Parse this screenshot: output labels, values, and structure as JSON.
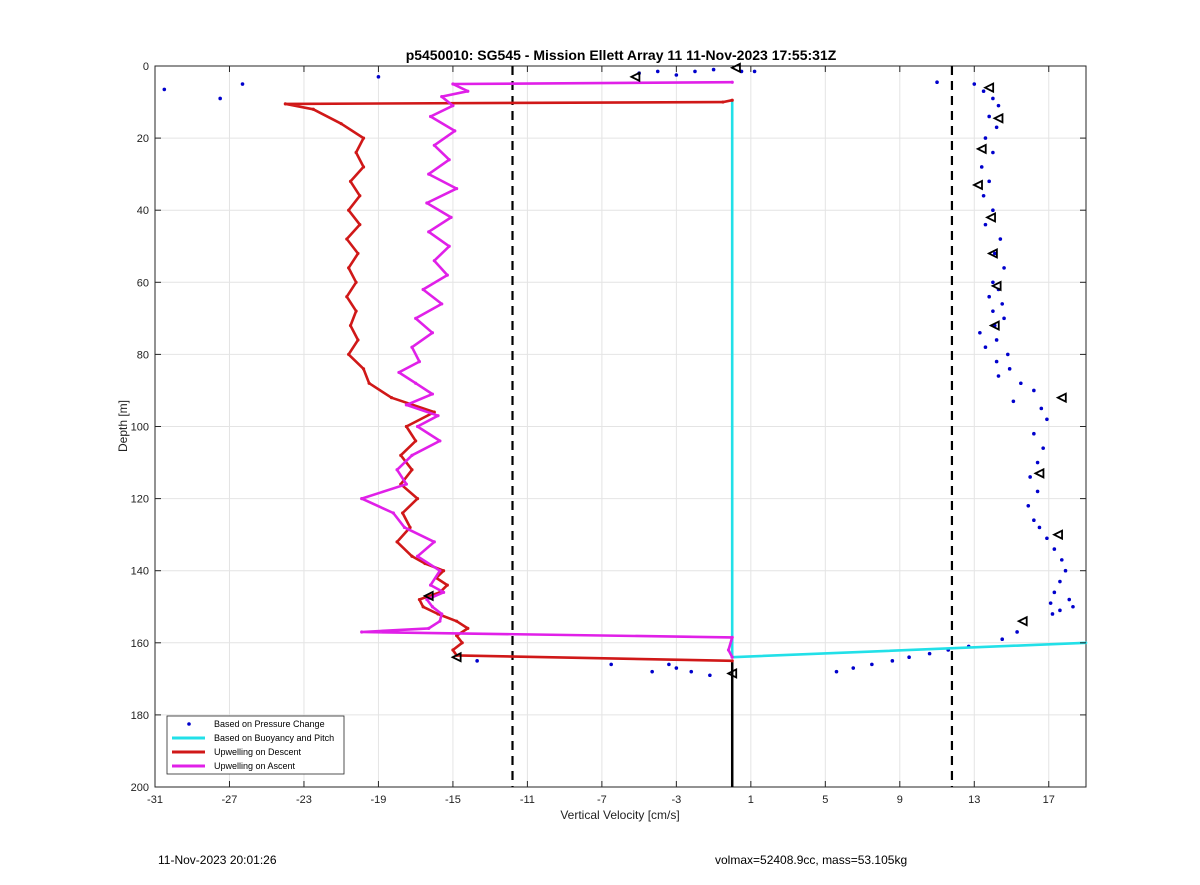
{
  "chart_data": {
    "type": "line",
    "title": "p5450010: SG545 - Mission Ellett Array 11 11-Nov-2023 17:55:31Z",
    "xlabel": "Vertical Velocity [cm/s]",
    "ylabel": "Depth [m]",
    "xlim": [
      -31,
      19
    ],
    "ylim": [
      0,
      200
    ],
    "y_reversed": true,
    "xticks": [
      -31,
      -27,
      -23,
      -19,
      -15,
      -11,
      -7,
      -3,
      1,
      5,
      9,
      13,
      17
    ],
    "yticks": [
      0,
      20,
      40,
      60,
      80,
      100,
      120,
      140,
      160,
      180,
      200
    ],
    "grid": true,
    "legend_position": "bottom-left",
    "vertical_reference_lines": [
      -11.8,
      11.8,
      0
    ],
    "series": [
      {
        "name": "Based on Pressure Change",
        "style": "dots",
        "color": "#0000cc",
        "x": [
          -30.5,
          -27.5,
          -26.3,
          -19,
          -5,
          -4,
          -3,
          -2,
          -1,
          0.5,
          1.2,
          11,
          13,
          13.5,
          14,
          14.3,
          13.8,
          14.2,
          13.6,
          14,
          13.4,
          13.8,
          13.5,
          14,
          13.6,
          14.4,
          14.1,
          14.6,
          14,
          14.3,
          13.8,
          14.5,
          14,
          14.6,
          14.1,
          13.3,
          14.2,
          13.6,
          14.8,
          14.2,
          14.9,
          14.3,
          15.5,
          16.2,
          15.1,
          16.6,
          16.9,
          16.2,
          16.7,
          16.4,
          16,
          16.4,
          15.9,
          16.2,
          16.5,
          16.9,
          17.3,
          17.7,
          17.9,
          17.6,
          17.3,
          17.1,
          17.6,
          18.1,
          18.3,
          17.2,
          15.3,
          14.5,
          12.7,
          11.6,
          10.6,
          9.5,
          8.6,
          7.5,
          6.5,
          5.6,
          -1.2,
          -2.2,
          -3,
          -3.4,
          -4.3,
          -6.5,
          -13.7
        ],
        "y": [
          6.5,
          9,
          5,
          3,
          2,
          1.5,
          2.5,
          1.5,
          1,
          1.5,
          1.5,
          4.5,
          5,
          7,
          9,
          11,
          14,
          17,
          20,
          24,
          28,
          32,
          36,
          40,
          44,
          48,
          52,
          56,
          60,
          62,
          64,
          66,
          68,
          70,
          72,
          74,
          76,
          78,
          80,
          82,
          84,
          86,
          88,
          90,
          93,
          95,
          98,
          102,
          106,
          110,
          114,
          118,
          122,
          126,
          128,
          131,
          134,
          137,
          140,
          143,
          146,
          149,
          151,
          148,
          150,
          152,
          157,
          159,
          161,
          162,
          163,
          164,
          165,
          166,
          167,
          168,
          169,
          168,
          167,
          166,
          168,
          166,
          165
        ]
      },
      {
        "name": "Based on Buoyancy and Pitch",
        "style": "line",
        "color": "#22e0e8",
        "x": [
          0,
          0,
          0,
          0,
          19
        ],
        "y": [
          9.5,
          100,
          159,
          164,
          160
        ]
      },
      {
        "name": "Upwelling on Descent",
        "style": "line-markers",
        "color": "#d01818",
        "x": [
          0,
          -0.5,
          -24,
          -22.5,
          -21,
          -19.8,
          -20.2,
          -19.8,
          -20.5,
          -20,
          -20.6,
          -20,
          -20.7,
          -20.1,
          -20.6,
          -20.2,
          -20.7,
          -20.2,
          -20.5,
          -20.1,
          -20.6,
          -19.8,
          -19.5,
          -18.3,
          -16,
          -17.5,
          -17,
          -17.8,
          -17.2,
          -17.8,
          -16.9,
          -17.7,
          -17.3,
          -18,
          -17.2,
          -16.5,
          -15.5,
          -15.9,
          -15.3,
          -15.7,
          -16.8,
          -16.6,
          -15.8,
          -14.8,
          -14.2,
          -14.8,
          -14.5,
          -15,
          -14.8,
          0
        ],
        "y": [
          9.5,
          10,
          10.5,
          12,
          16,
          20,
          24,
          28,
          32,
          36,
          40,
          44,
          48,
          52,
          56,
          60,
          64,
          68,
          72,
          76,
          80,
          84,
          88,
          92,
          96,
          100,
          104,
          108,
          112,
          116,
          120,
          124,
          128,
          132,
          136,
          138,
          140,
          142,
          144,
          146,
          148,
          150,
          152,
          154,
          156,
          158,
          160,
          162,
          163.5,
          165
        ]
      },
      {
        "name": "Upwelling on Ascent",
        "style": "line-markers",
        "color": "#e020e8",
        "x": [
          0,
          -15,
          -14.2,
          -15.6,
          -15,
          -16.2,
          -14.9,
          -16,
          -15.2,
          -16.3,
          -14.8,
          -16.4,
          -15.1,
          -16.3,
          -15.2,
          -16,
          -15.3,
          -16.6,
          -15.6,
          -17,
          -16.1,
          -17.2,
          -16.8,
          -17.9,
          -17,
          -16.1,
          -17.5,
          -15.8,
          -16.9,
          -15.7,
          -17.2,
          -18,
          -17.5,
          -19.9,
          -18.2,
          -17.6,
          -16,
          -16.9,
          -15.7,
          -16.2,
          -15.5,
          -16.4,
          -16.1,
          -15.6,
          -15.7,
          -16.3,
          -19.9,
          0,
          -0.2,
          0
        ],
        "y": [
          4.5,
          5,
          7,
          8.5,
          11,
          14,
          18,
          22,
          26,
          30,
          34,
          38,
          42,
          46,
          50,
          54,
          58,
          62,
          66,
          70,
          74,
          78,
          82,
          85,
          88,
          91,
          94,
          97,
          100,
          104,
          108,
          112,
          116,
          120,
          124,
          128,
          132,
          136,
          140,
          144,
          146,
          148,
          150,
          152,
          154,
          156,
          157,
          158.5,
          162,
          164
        ]
      }
    ],
    "markers": {
      "color": "#000000",
      "x": [
        0.2,
        -5.2,
        13.8,
        14.3,
        13.4,
        13.2,
        13.9,
        14,
        14.2,
        14.1,
        17.7,
        16.5,
        17.5,
        15.6,
        -16.3,
        -14.8,
        0
      ],
      "y": [
        0.5,
        3,
        6,
        14.5,
        23,
        33,
        42,
        52,
        61,
        72,
        92,
        113,
        130,
        154,
        147,
        164,
        168.5
      ]
    }
  },
  "legend": {
    "items": [
      {
        "label": "Based on Pressure Change",
        "color": "#0000cc",
        "style": "dot"
      },
      {
        "label": "Based on Buoyancy and Pitch",
        "color": "#22e0e8",
        "style": "line"
      },
      {
        "label": "Upwelling on Descent",
        "color": "#d01818",
        "style": "line"
      },
      {
        "label": "Upwelling on Ascent",
        "color": "#e020e8",
        "style": "line"
      }
    ]
  },
  "footer": {
    "timestamp": "11-Nov-2023 20:01:26",
    "info": "volmax=52408.9cc, mass=53.105kg"
  }
}
